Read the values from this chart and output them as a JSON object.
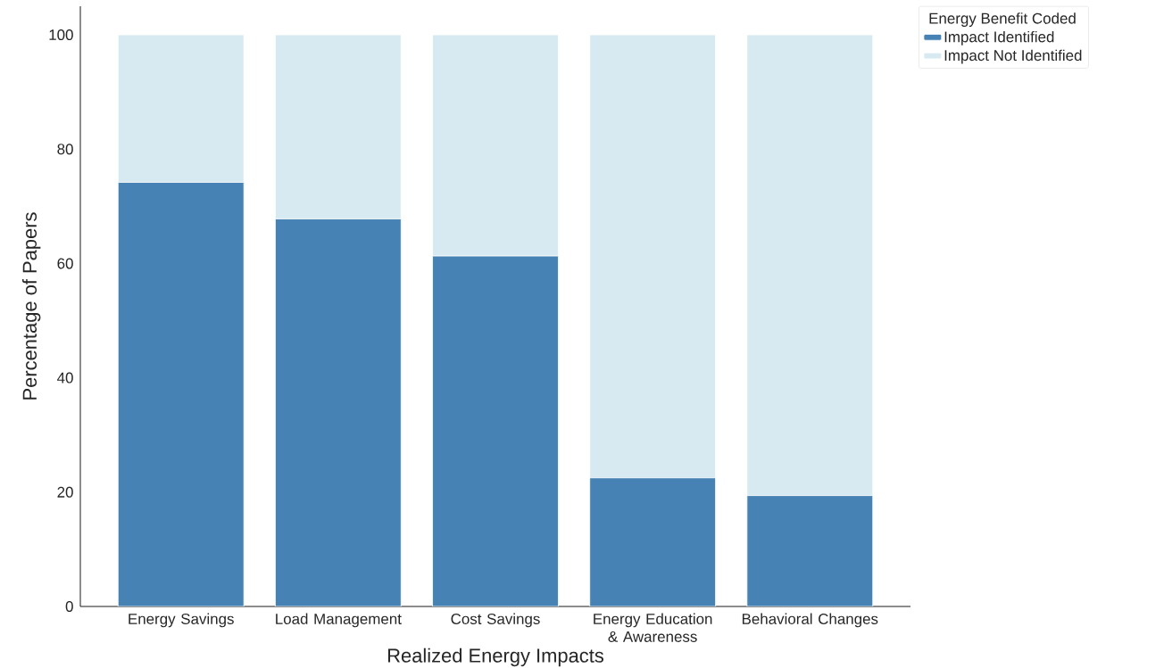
{
  "chart_data": {
    "type": "bar",
    "stacked": true,
    "categories": [
      "Energy Savings",
      "Load Management",
      "Cost Savings",
      "Energy Education & Awareness",
      "Behavioral Changes"
    ],
    "series": [
      {
        "name": "Impact Identified",
        "color": "#4682b4",
        "values": [
          74.2,
          67.8,
          61.3,
          22.5,
          19.4
        ]
      },
      {
        "name": "Impact Not Identified",
        "color": "#d7eaf2",
        "values": [
          25.8,
          32.2,
          38.7,
          77.5,
          80.6
        ]
      }
    ],
    "xlabel": "Realized Energy Impacts",
    "ylabel": "Percentage of Papers",
    "ylim": [
      0,
      105
    ],
    "yticks": [
      0,
      20,
      40,
      60,
      80,
      100
    ],
    "legend": "top right",
    "legend_title": "Energy Benefit Coded"
  }
}
